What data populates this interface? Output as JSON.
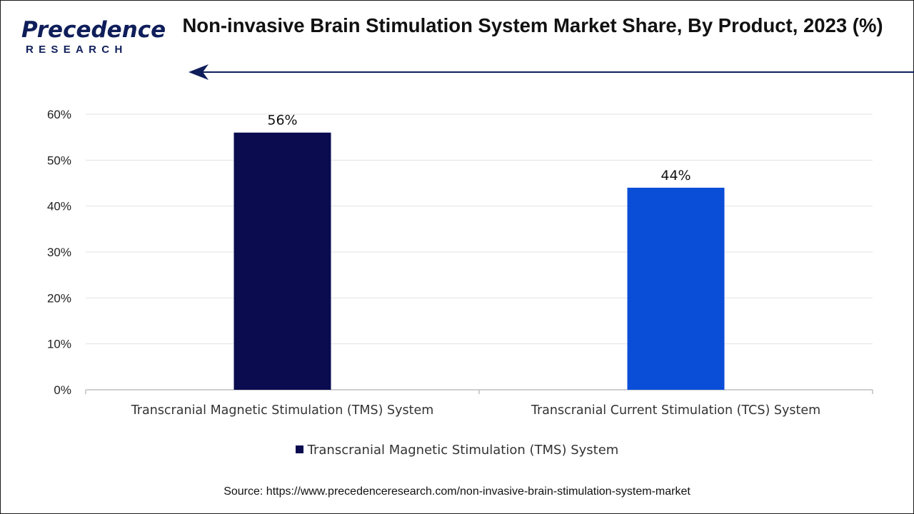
{
  "brand": {
    "logo_main": "Precedence",
    "logo_sub": "RESEARCH",
    "color": "#0f1e5a"
  },
  "title": "Non-invasive Brain Stimulation System Market Share, By Product, 2023 (%)",
  "legend": {
    "label": "Transcranial Magnetic Stimulation (TMS) System",
    "color": "#0a0c4f"
  },
  "source": "Source: https://www.precedenceresearch.com/non-invasive-brain-stimulation-system-market",
  "chart_data": {
    "type": "bar",
    "categories": [
      "Transcranial Magnetic Stimulation (TMS) System",
      "Transcranial Current Stimulation (TCS) System"
    ],
    "values": [
      56,
      44
    ],
    "data_labels": [
      "56%",
      "44%"
    ],
    "bar_colors": [
      "#0a0c4f",
      "#0a4ed8"
    ],
    "ylim": [
      0,
      60
    ],
    "yticks": [
      0,
      10,
      20,
      30,
      40,
      50,
      60
    ],
    "ytick_labels": [
      "0%",
      "10%",
      "20%",
      "30%",
      "40%",
      "50%",
      "60%"
    ],
    "grid": true,
    "legend_position": "bottom"
  }
}
